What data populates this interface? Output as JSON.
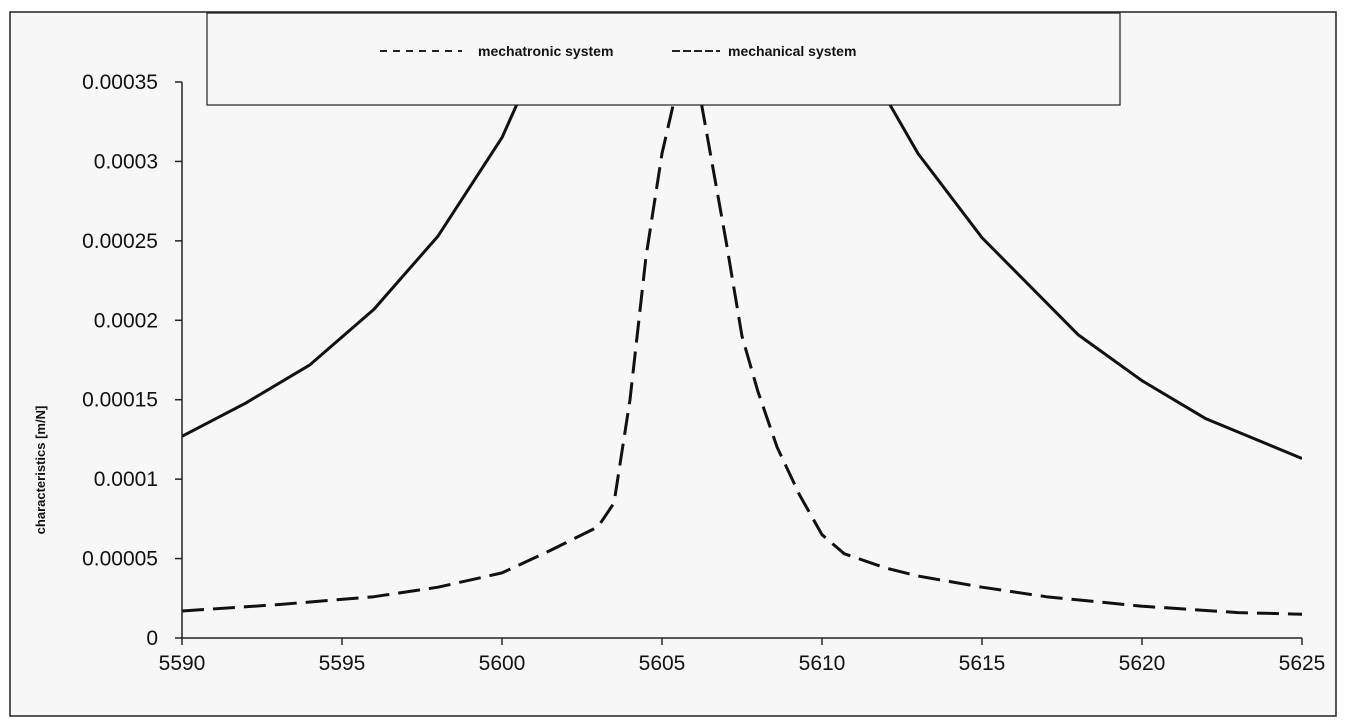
{
  "chart_data": {
    "type": "line",
    "title": "",
    "xlabel": "",
    "ylabel": "characteristics [m/N]",
    "xlim": [
      5590,
      5625
    ],
    "ylim": [
      0,
      0.00035
    ],
    "x_ticks": [
      "5590",
      "5595",
      "5600",
      "5605",
      "5610",
      "5615",
      "5620",
      "5625"
    ],
    "y_ticks": [
      "0",
      "0.00005",
      "0.0001",
      "0.00015",
      "0.0002",
      "0.00025",
      "0.0003",
      "0.00035"
    ],
    "grid": false,
    "legend_position": "top",
    "legend": [
      {
        "label": "mechatronic system",
        "style": "dashed"
      },
      {
        "label": "mechanical system",
        "style": "dashed"
      }
    ],
    "series": [
      {
        "style": "solid",
        "x": [
          5590,
          5592,
          5594,
          5596,
          5598,
          5600,
          5601,
          5611,
          5612,
          5613,
          5615,
          5618,
          5620,
          5622,
          5625
        ],
        "y": [
          0.000127,
          0.000148,
          0.000172,
          0.000207,
          0.000253,
          0.000315,
          0.00036,
          0.00036,
          0.00034,
          0.000305,
          0.000252,
          0.000191,
          0.000162,
          0.000138,
          0.000113
        ]
      },
      {
        "style": "dashed",
        "x": [
          5590,
          5593,
          5596,
          5598,
          5600,
          5601.5,
          5603,
          5603.5,
          5604,
          5604.5,
          5605,
          5605.4,
          5606.2,
          5607,
          5607.5,
          5608,
          5608.6,
          5609.3,
          5610,
          5610.7,
          5612,
          5613,
          5615,
          5617,
          5620,
          5623,
          5625
        ],
        "y": [
          1.7e-05,
          2.1e-05,
          2.6e-05,
          3.2e-05,
          4.1e-05,
          5.5e-05,
          7e-05,
          8.5e-05,
          0.00015,
          0.00024,
          0.000305,
          0.00034,
          0.00034,
          0.00025,
          0.00019,
          0.000155,
          0.00012,
          9e-05,
          6.5e-05,
          5.3e-05,
          4.4e-05,
          3.9e-05,
          3.2e-05,
          2.6e-05,
          2e-05,
          1.6e-05,
          1.5e-05
        ]
      }
    ]
  }
}
